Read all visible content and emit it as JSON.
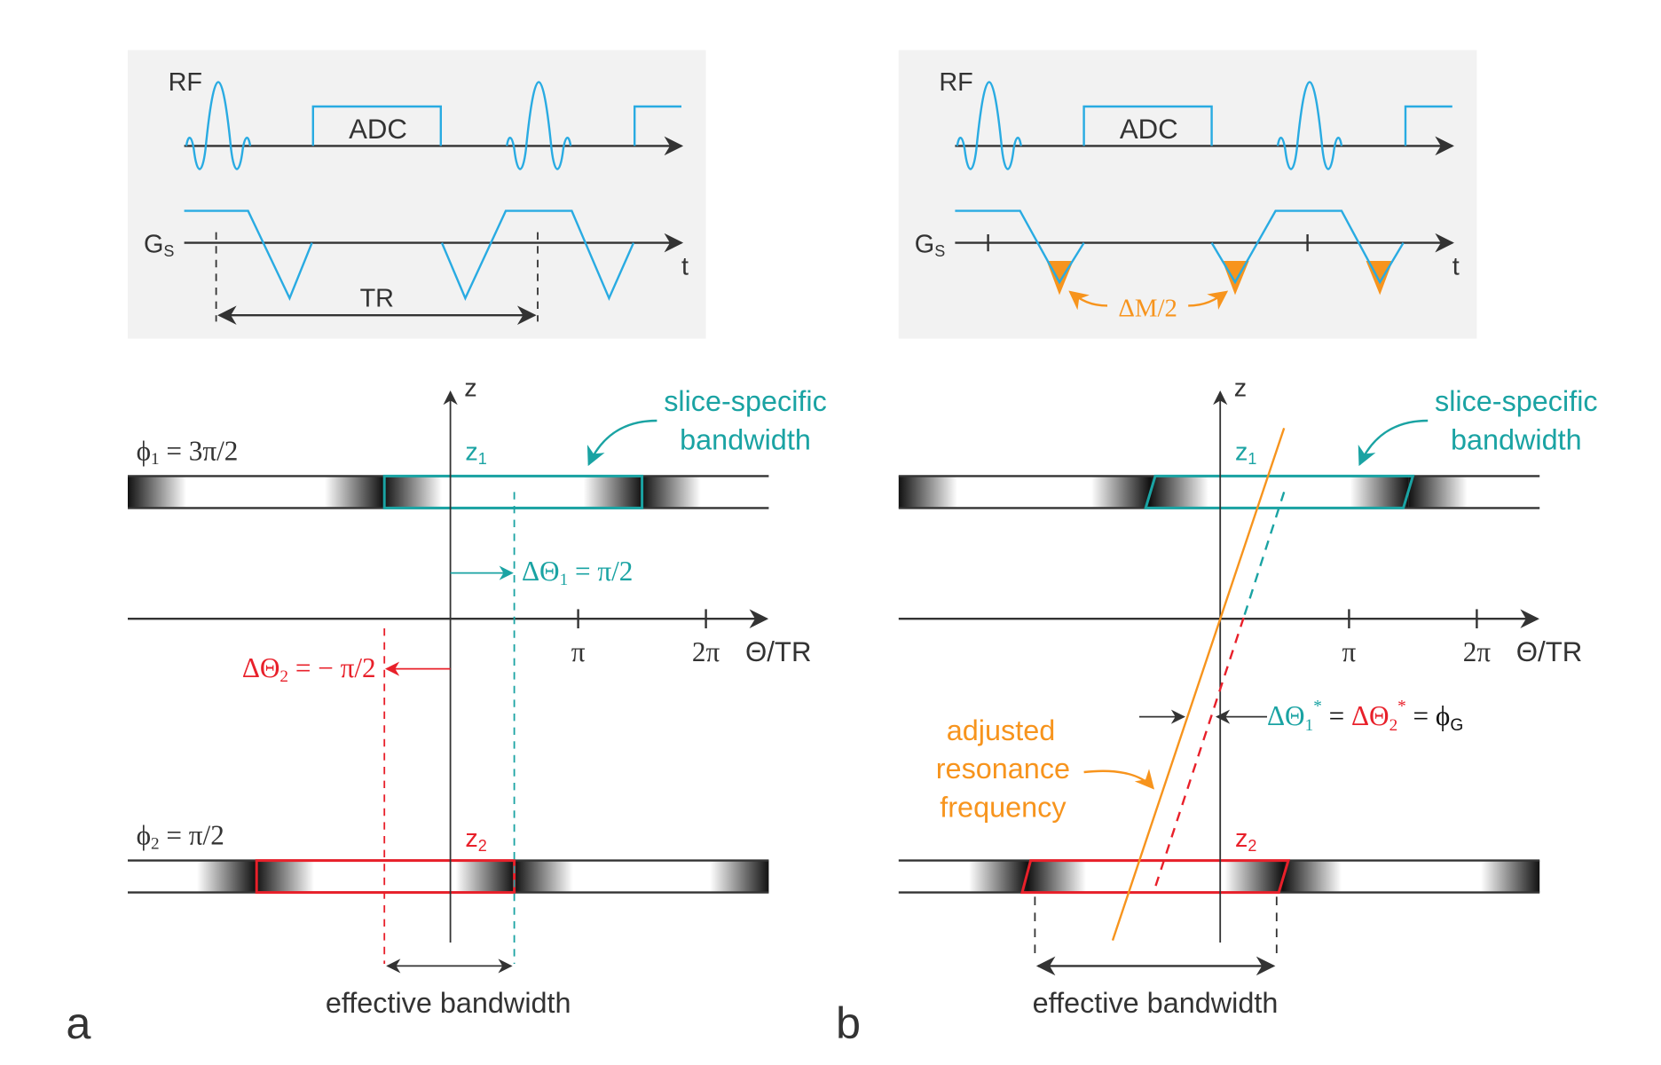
{
  "colors": {
    "waveform": "#29abe2",
    "teal": "#1aa3a3",
    "red": "#e8202a",
    "orange": "#f7941d",
    "ink": "#333333",
    "panel_bg": "#f2f2f2"
  },
  "panel_a": {
    "label": "a",
    "seq": {
      "rf": "RF",
      "adc": "ADC",
      "gs_main": "G",
      "gs_sub": "S",
      "t": "t",
      "tr": "TR"
    },
    "z_axis": "z",
    "x_ticks": [
      "π",
      "2π"
    ],
    "x_axis": "Θ/TR",
    "phi1": {
      "main": "ϕ",
      "sub": "1",
      "rest": " = 3π/2"
    },
    "phi2": {
      "main": "ϕ",
      "sub": "2",
      "rest": " = π/2"
    },
    "z1": {
      "main": "z",
      "sub": "1"
    },
    "z2": {
      "main": "z",
      "sub": "2"
    },
    "slice_bw": [
      "slice-specific",
      "bandwidth"
    ],
    "dtheta1": {
      "main": "ΔΘ",
      "sub": "1",
      "rest": " = π/2"
    },
    "dtheta2": {
      "main": "ΔΘ",
      "sub": "2",
      "rest": " = − π/2"
    },
    "effective_bw": "effective bandwidth"
  },
  "panel_b": {
    "label": "b",
    "seq": {
      "rf": "RF",
      "adc": "ADC",
      "gs_main": "G",
      "gs_sub": "S",
      "t": "t",
      "dm": "ΔM/2"
    },
    "z_axis": "z",
    "x_ticks": [
      "π",
      "2π"
    ],
    "x_axis": "Θ/TR",
    "z1": {
      "main": "z",
      "sub": "1"
    },
    "z2": {
      "main": "z",
      "sub": "2"
    },
    "slice_bw": [
      "slice-specific",
      "bandwidth"
    ],
    "adjusted": [
      "adjusted",
      "resonance",
      "frequency"
    ],
    "dtheta_star": {
      "t1": "ΔΘ",
      "s1": "1",
      "sup1": "*",
      "eq1": " = ",
      "t2": "ΔΘ",
      "s2": "2",
      "sup2": "*",
      "eq2": " = ϕ",
      "s3": "G"
    },
    "effective_bw": "effective bandwidth"
  }
}
